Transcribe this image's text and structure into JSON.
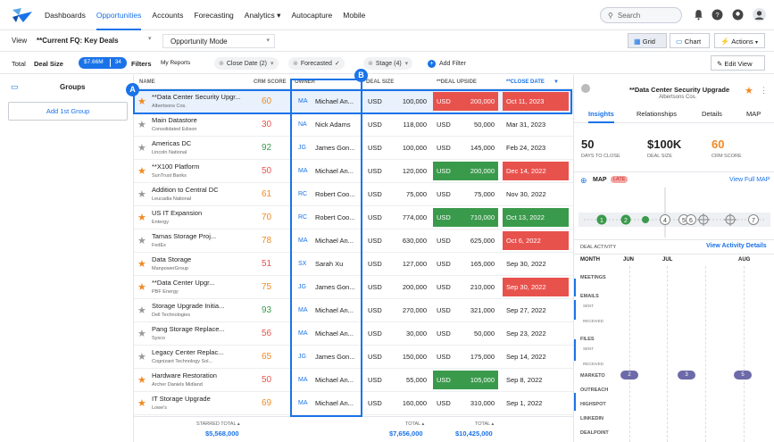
{
  "nav": {
    "items": [
      "Dashboards",
      "Opportunities",
      "Accounts",
      "Forecasting",
      "Analytics ▾",
      "Autocapture",
      "Mobile"
    ],
    "active": "Opportunities",
    "search_placeholder": "Search"
  },
  "view_bar": {
    "view_label": "View",
    "view_value": "**Current FQ: Key Deals",
    "mode": "Opportunity Mode",
    "grid_label": "Grid",
    "chart_label": "Chart",
    "actions_label": "Actions"
  },
  "filter_bar": {
    "total_label": "Total",
    "total_field": "Deal Size",
    "total_value": "$7.66M",
    "total_count": "34",
    "filters_label": "Filters",
    "my_reports": "My Reports",
    "close_date": "Close Date (2)",
    "forecasted": "Forecasted",
    "stage": "Stage (4)",
    "add_filter": "Add Filter",
    "edit_view": "Edit View"
  },
  "groups": {
    "title": "Groups",
    "add_button": "Add 1st Group"
  },
  "columns": {
    "name": "NAME",
    "crm": "CRM SCORE",
    "owner": "OWNER",
    "deal": "DEAL SIZE",
    "upside": "**DEAL UPSIDE",
    "close": "**CLOSE DATE"
  },
  "rows": [
    {
      "star": true,
      "name": "**Data Center Security Upgr...",
      "account": "Albertsons Cos.",
      "score": "60",
      "owner_initials": "MA",
      "owner": "Michael An...",
      "cur1": "USD",
      "deal": "100,000",
      "cur2": "USD",
      "upside": "200,000",
      "close": "Oct 11, 2023",
      "upside_color": "red",
      "close_color": "red"
    },
    {
      "star": false,
      "name": "Main Datastore",
      "account": "Consolidated Edison",
      "score": "30",
      "owner_initials": "NA",
      "owner": "Nick Adams",
      "cur1": "USD",
      "deal": "118,000",
      "cur2": "USD",
      "upside": "50,000",
      "close": "Mar 31, 2023",
      "upside_color": "",
      "close_color": ""
    },
    {
      "star": false,
      "name": "Americas DC",
      "account": "Lincoln National",
      "score": "92",
      "owner_initials": "JG",
      "owner": "James Gon...",
      "cur1": "USD",
      "deal": "100,000",
      "cur2": "USD",
      "upside": "145,000",
      "close": "Feb 24, 2023",
      "upside_color": "",
      "close_color": ""
    },
    {
      "star": true,
      "name": "**X100 Platform",
      "account": "SunTrust Banks",
      "score": "50",
      "owner_initials": "MA",
      "owner": "Michael An...",
      "cur1": "USD",
      "deal": "120,000",
      "cur2": "USD",
      "upside": "200,000",
      "close": "Dec 14, 2022",
      "upside_color": "green",
      "close_color": "red"
    },
    {
      "star": false,
      "name": "Addition to Central DC",
      "account": "Leucadia National",
      "score": "61",
      "owner_initials": "RC",
      "owner": "Robert Coo...",
      "cur1": "USD",
      "deal": "75,000",
      "cur2": "USD",
      "upside": "75,000",
      "close": "Nov 30, 2022",
      "upside_color": "",
      "close_color": ""
    },
    {
      "star": true,
      "name": "US IT Expansion",
      "account": "Entergy",
      "score": "70",
      "owner_initials": "RC",
      "owner": "Robert Coo...",
      "cur1": "USD",
      "deal": "774,000",
      "cur2": "USD",
      "upside": "710,000",
      "close": "Oct 13, 2022",
      "upside_color": "green",
      "close_color": "green"
    },
    {
      "star": false,
      "name": "Tamas Storage Proj...",
      "account": "FedEx",
      "score": "78",
      "owner_initials": "MA",
      "owner": "Michael An...",
      "cur1": "USD",
      "deal": "630,000",
      "cur2": "USD",
      "upside": "625,000",
      "close": "Oct 6, 2022",
      "upside_color": "",
      "close_color": "red"
    },
    {
      "star": true,
      "name": "Data Storage",
      "account": "ManpowerGroup",
      "score": "51",
      "owner_initials": "SX",
      "owner": "Sarah Xu",
      "cur1": "USD",
      "deal": "127,000",
      "cur2": "USD",
      "upside": "165,000",
      "close": "Sep 30, 2022",
      "upside_color": "",
      "close_color": ""
    },
    {
      "star": true,
      "name": "**Data Center Upgr...",
      "account": "PBF Energy",
      "score": "75",
      "owner_initials": "JG",
      "owner": "James Gon...",
      "cur1": "USD",
      "deal": "200,000",
      "cur2": "USD",
      "upside": "210,000",
      "close": "Sep 30, 2022",
      "upside_color": "",
      "close_color": "red"
    },
    {
      "star": false,
      "name": "Storage Upgrade Initia...",
      "account": "Dell Technologies",
      "score": "93",
      "owner_initials": "MA",
      "owner": "Michael An...",
      "cur1": "USD",
      "deal": "270,000",
      "cur2": "USD",
      "upside": "321,000",
      "close": "Sep 27, 2022",
      "upside_color": "",
      "close_color": ""
    },
    {
      "star": false,
      "name": "Pang Storage Replace...",
      "account": "Sysco",
      "score": "56",
      "owner_initials": "MA",
      "owner": "Michael An...",
      "cur1": "USD",
      "deal": "30,000",
      "cur2": "USD",
      "upside": "50,000",
      "close": "Sep 23, 2022",
      "upside_color": "",
      "close_color": ""
    },
    {
      "star": false,
      "name": "Legacy Center Replac...",
      "account": "Cognizant Technology Sol...",
      "score": "65",
      "owner_initials": "JG",
      "owner": "James Gon...",
      "cur1": "USD",
      "deal": "150,000",
      "cur2": "USD",
      "upside": "175,000",
      "close": "Sep 14, 2022",
      "upside_color": "",
      "close_color": ""
    },
    {
      "star": true,
      "name": "Hardware Restoration",
      "account": "Archer Daniels Midland",
      "score": "50",
      "owner_initials": "MA",
      "owner": "Michael An...",
      "cur1": "USD",
      "deal": "55,000",
      "cur2": "USD",
      "upside": "105,000",
      "close": "Sep 8, 2022",
      "upside_color": "green",
      "close_color": ""
    },
    {
      "star": true,
      "name": "IT Storage Upgrade",
      "account": "Lowe's",
      "score": "69",
      "owner_initials": "MA",
      "owner": "Michael An...",
      "cur1": "USD",
      "deal": "160,000",
      "cur2": "USD",
      "upside": "310,000",
      "close": "Sep 1, 2022",
      "upside_color": "",
      "close_color": ""
    }
  ],
  "footer": {
    "starred_label": "STARRED TOTAL ▴",
    "starred_value": "$5,568,000",
    "total_label": "TOTAL ▴",
    "total_value": "$7,656,000",
    "total2_label": "TOTAL ▴",
    "total2_value": "$10,425,000"
  },
  "callouts": {
    "a": "A",
    "b": "B"
  },
  "detail": {
    "title": "**Data Center Security Upgrade",
    "account": "Albertsons Cos.",
    "tabs": [
      "Insights",
      "Relationships",
      "Details",
      "MAP"
    ],
    "stats": [
      {
        "value": "50",
        "label": "DAYS TO CLOSE"
      },
      {
        "value": "$100K",
        "label": "DEAL SIZE"
      },
      {
        "value": "60",
        "label": "CRM SCORE"
      }
    ],
    "map_label": "MAP",
    "map_badge": "LATE",
    "view_full_map": "View Full MAP",
    "map_steps": [
      "1",
      "2",
      "4",
      "5",
      "6",
      "7"
    ],
    "deal_activity": "DEAL ACTIVITY",
    "view_activity": "View Activity Details",
    "months": [
      "MONTH",
      "JUN",
      "JUL",
      "AUG"
    ],
    "activity_rows": [
      "MEETINGS",
      "EMAILS",
      "SENT",
      "RECEIVED",
      "FILES",
      "SENT",
      "RECEIVED",
      "MARKETO",
      "OUTREACH",
      "HIGHSPOT",
      "LINKEDIN",
      "DEALPOINT"
    ],
    "marketo_pills": [
      "2",
      "3",
      "5"
    ]
  },
  "colors": {
    "accent": "#1a73e8",
    "red": "#e8524d",
    "green": "#3a9a4c",
    "orange_star": "#f08a24"
  }
}
